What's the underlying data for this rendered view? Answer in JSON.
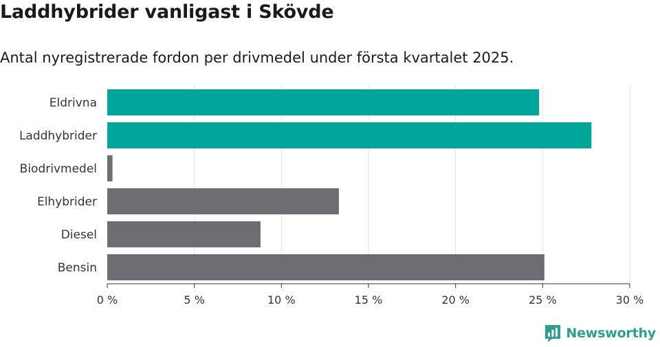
{
  "title": "Laddhybrider vanligast i Skövde",
  "subtitle": "Antal nyregistrerade fordon per drivmedel under första kvartalet 2025.",
  "brand": {
    "name": "Newsworthy",
    "logo_icon": "bar-chart-bubble-icon",
    "color": "#2f9e8f"
  },
  "colors": {
    "highlight": "#00a59a",
    "default": "#6e6d73",
    "grid": "#e2e2e2",
    "axis": "#333333"
  },
  "chart_data": {
    "type": "bar",
    "orientation": "horizontal",
    "categories": [
      "Eldrivna",
      "Laddhybrider",
      "Biodrivmedel",
      "Elhybrider",
      "Diesel",
      "Bensin"
    ],
    "values": [
      24.8,
      27.8,
      0.3,
      13.3,
      8.8,
      25.1
    ],
    "highlighted": [
      true,
      true,
      false,
      false,
      false,
      false
    ],
    "xlim": [
      0,
      30
    ],
    "ticks": [
      0,
      5,
      10,
      15,
      20,
      25,
      30
    ],
    "tick_labels": [
      "0 %",
      "5 %",
      "10 %",
      "15 %",
      "20 %",
      "25 %",
      "30 %"
    ],
    "grid": true
  }
}
